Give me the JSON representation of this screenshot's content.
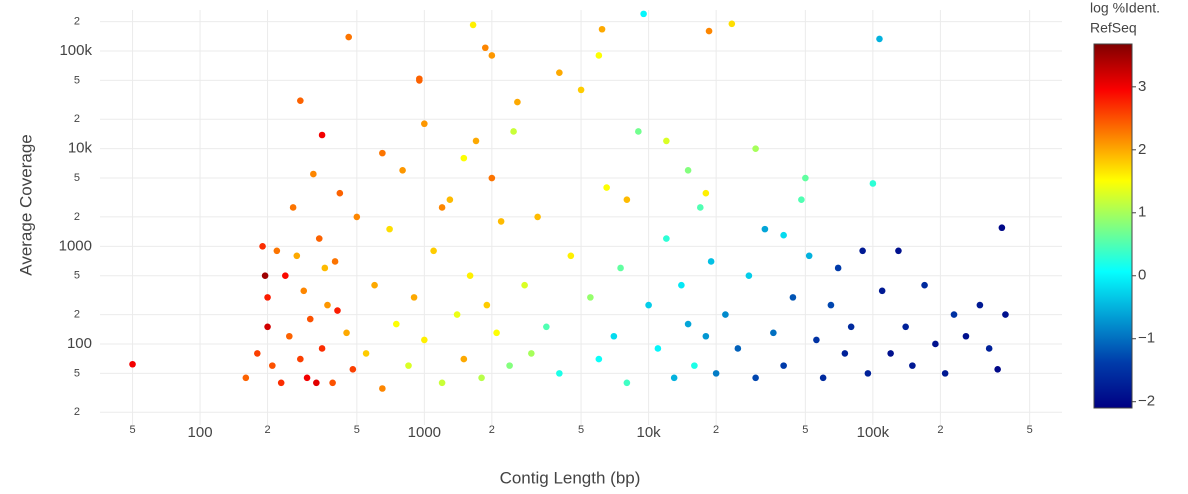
{
  "chart_data": {
    "type": "scatter",
    "x_label": "Contig Length (bp)",
    "y_label": "Average Coverage",
    "colorbar_title": [
      "log %Ident.",
      "RefSeq"
    ],
    "log_x": true,
    "log_y": true,
    "grid": true,
    "colorscale": "Jet",
    "xlim": [
      35.8,
      697000
    ],
    "ylim": [
      14.8,
      263000
    ],
    "clim": [
      -2.1,
      3.68
    ],
    "xticks": [
      {
        "value": 50,
        "label": "5"
      },
      100,
      {
        "value": 200,
        "label": "2"
      },
      {
        "value": 500,
        "label": "5"
      },
      1000,
      {
        "value": 2000,
        "label": "2"
      },
      {
        "value": 5000,
        "label": "5"
      },
      {
        "value": 10000,
        "label": "10k"
      },
      {
        "value": 20000,
        "label": "2"
      },
      {
        "value": 50000,
        "label": "5"
      },
      {
        "value": 100000,
        "label": "100k"
      },
      {
        "value": 200000,
        "label": "2"
      },
      {
        "value": 500000,
        "label": "5"
      }
    ],
    "yticks": [
      {
        "value": 20,
        "label": "2"
      },
      {
        "value": 50,
        "label": "5"
      },
      100,
      {
        "value": 200,
        "label": "2"
      },
      {
        "value": 500,
        "label": "5"
      },
      1000,
      {
        "value": 2000,
        "label": "2"
      },
      {
        "value": 5000,
        "label": "5"
      },
      {
        "value": 10000,
        "label": "10k"
      },
      {
        "value": 20000,
        "label": "2"
      },
      {
        "value": 50000,
        "label": "5"
      },
      {
        "value": 100000,
        "label": "100k"
      },
      {
        "value": 200000,
        "label": "2"
      }
    ],
    "cticks": [
      {
        "value": -2,
        "label": "−2"
      },
      {
        "value": -1,
        "label": "−1"
      },
      0,
      1,
      2,
      3
    ],
    "x": [
      160,
      180,
      200,
      200,
      210,
      220,
      230,
      240,
      250,
      260,
      280,
      290,
      300,
      310,
      320,
      340,
      350,
      370,
      390,
      400,
      420,
      450,
      480,
      500,
      190,
      195,
      270,
      330,
      360,
      410,
      550,
      600,
      650,
      700,
      750,
      800,
      850,
      900,
      950,
      1000,
      1100,
      1200,
      1300,
      1400,
      1500,
      1600,
      1700,
      1800,
      1900,
      2000,
      2100,
      2200,
      2400,
      2600,
      2800,
      3000,
      650,
      1000,
      1500,
      2500,
      1200,
      2000,
      3200,
      3500,
      4000,
      4500,
      5000,
      5500,
      6000,
      6500,
      7000,
      7500,
      8000,
      9000,
      10000,
      11000,
      12000,
      13000,
      14000,
      15000,
      16000,
      17000,
      18000,
      19000,
      20000,
      4000,
      6000,
      8000,
      12000,
      15000,
      18000,
      22000,
      25000,
      28000,
      30000,
      33000,
      36000,
      40000,
      44000,
      48000,
      52000,
      56000,
      60000,
      65000,
      70000,
      75000,
      80000,
      90000,
      95000,
      50000,
      30000,
      40000,
      110000,
      120000,
      130000,
      140000,
      150000,
      170000,
      190000,
      210000,
      230000,
      260000,
      300000,
      330000,
      360000,
      390000,
      50,
      9500,
      107000,
      376000,
      100000,
      460,
      1650,
      1870,
      6200,
      23500,
      18600,
      280,
      950,
      350
    ],
    "y": [
      45,
      80,
      300,
      150,
      60,
      900,
      40,
      500,
      120,
      2500,
      70,
      350,
      45,
      180,
      5500,
      1200,
      90,
      250,
      40,
      700,
      3500,
      130,
      55,
      2000,
      1000,
      500,
      800,
      40,
      600,
      220,
      80,
      400,
      35,
      1500,
      160,
      6000,
      60,
      300,
      50000,
      110,
      900,
      40,
      3000,
      200,
      70,
      500,
      12000,
      45,
      250,
      90000,
      130,
      1800,
      60,
      30000,
      400,
      80,
      9000,
      18000,
      8000,
      15000,
      2500,
      5000,
      2000,
      150,
      50,
      800,
      40000,
      300,
      70,
      4000,
      120,
      600,
      40,
      15000,
      250,
      90,
      1200,
      45,
      400,
      160,
      60,
      2500,
      120,
      700,
      50,
      60000,
      90000,
      3000,
      12000,
      6000,
      3500,
      200,
      90,
      500,
      45,
      1500,
      130,
      60,
      300,
      3000,
      800,
      110,
      45,
      250,
      600,
      80,
      150,
      900,
      50,
      5000,
      10000,
      1300,
      350,
      80,
      900,
      150,
      60,
      400,
      100,
      50,
      200,
      120,
      250,
      90,
      55,
      200,
      62,
      240000,
      133000,
      1550,
      4400,
      139000,
      185000,
      108000,
      167000,
      190000,
      160000,
      31000,
      52000,
      13800
    ],
    "color_values": [
      2.4,
      2.6,
      2.8,
      3.2,
      2.5,
      2.3,
      2.7,
      2.9,
      2.4,
      2.3,
      2.6,
      2.2,
      3.0,
      2.5,
      2.2,
      2.4,
      2.7,
      2.1,
      2.5,
      2.3,
      2.4,
      2.0,
      2.6,
      2.2,
      2.7,
      3.5,
      2.0,
      3.1,
      1.9,
      2.8,
      1.8,
      2.0,
      2.2,
      1.7,
      1.5,
      2.1,
      1.3,
      2.0,
      2.4,
      1.6,
      1.8,
      1.2,
      1.9,
      1.4,
      2.0,
      1.6,
      2.0,
      1.1,
      1.8,
      2.1,
      1.5,
      1.9,
      0.8,
      2.0,
      1.3,
      1.0,
      2.3,
      2.1,
      1.5,
      1.2,
      2.2,
      2.3,
      1.9,
      0.5,
      0.2,
      1.6,
      1.8,
      0.9,
      0.1,
      1.5,
      -0.2,
      0.6,
      0.4,
      0.7,
      -0.3,
      0.0,
      0.3,
      -0.5,
      -0.1,
      -0.6,
      0.2,
      0.5,
      -0.7,
      -0.4,
      -0.9,
      2.0,
      1.5,
      1.9,
      1.3,
      0.8,
      1.6,
      -0.8,
      -1.1,
      -0.3,
      -1.3,
      -0.6,
      -1.0,
      -1.4,
      -1.2,
      0.5,
      -0.5,
      -1.5,
      -1.6,
      -1.3,
      -1.4,
      -1.7,
      -1.6,
      -1.8,
      -1.7,
      0.6,
      1.0,
      -0.2,
      -1.8,
      -1.9,
      -1.9,
      -1.7,
      -1.8,
      -1.6,
      -1.9,
      -1.8,
      -1.5,
      -1.9,
      -1.8,
      -1.7,
      -2.0,
      -1.9,
      3.0,
      0.0,
      -0.5,
      -2.0,
      0.3,
      2.3,
      1.6,
      2.2,
      2.0,
      1.7,
      2.2,
      2.4,
      2.4,
      3.0
    ]
  }
}
